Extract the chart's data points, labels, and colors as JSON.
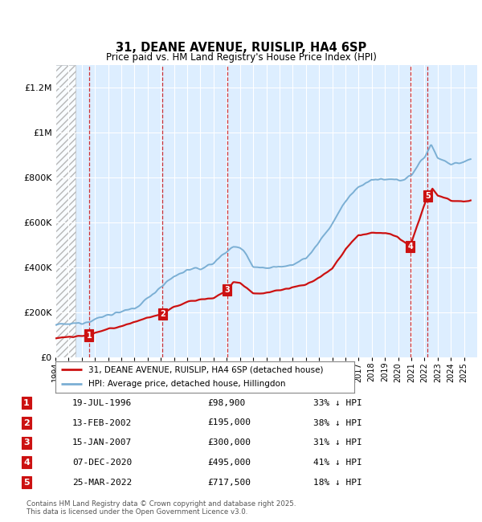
{
  "title_line1": "31, DEANE AVENUE, RUISLIP, HA4 6SP",
  "title_line2": "Price paid vs. HM Land Registry's House Price Index (HPI)",
  "ylim": [
    0,
    1300000
  ],
  "yticks": [
    0,
    200000,
    400000,
    600000,
    800000,
    1000000,
    1200000
  ],
  "ytick_labels": [
    "£0",
    "£200K",
    "£400K",
    "£600K",
    "£800K",
    "£1M",
    "£1.2M"
  ],
  "hpi_color": "#7bafd4",
  "price_color": "#cc1111",
  "sale_dates_x": [
    1996.55,
    2002.12,
    2007.04,
    2020.93,
    2022.23
  ],
  "sale_prices_y": [
    98900,
    195000,
    300000,
    495000,
    717500
  ],
  "sale_labels": [
    "1",
    "2",
    "3",
    "4",
    "5"
  ],
  "vline_x": [
    1996.55,
    2002.12,
    2007.04,
    2020.93,
    2022.23
  ],
  "legend_entries": [
    "31, DEANE AVENUE, RUISLIP, HA4 6SP (detached house)",
    "HPI: Average price, detached house, Hillingdon"
  ],
  "table_rows": [
    [
      "1",
      "19-JUL-1996",
      "£98,900",
      "33% ↓ HPI"
    ],
    [
      "2",
      "13-FEB-2002",
      "£195,000",
      "38% ↓ HPI"
    ],
    [
      "3",
      "15-JAN-2007",
      "£300,000",
      "31% ↓ HPI"
    ],
    [
      "4",
      "07-DEC-2020",
      "£495,000",
      "41% ↓ HPI"
    ],
    [
      "5",
      "25-MAR-2022",
      "£717,500",
      "18% ↓ HPI"
    ]
  ],
  "footnote": "Contains HM Land Registry data © Crown copyright and database right 2025.\nThis data is licensed under the Open Government Licence v3.0.",
  "xmin": 1994,
  "xmax": 2026,
  "hatch_end_x": 1995.5,
  "bg_color": "#ddeeff"
}
